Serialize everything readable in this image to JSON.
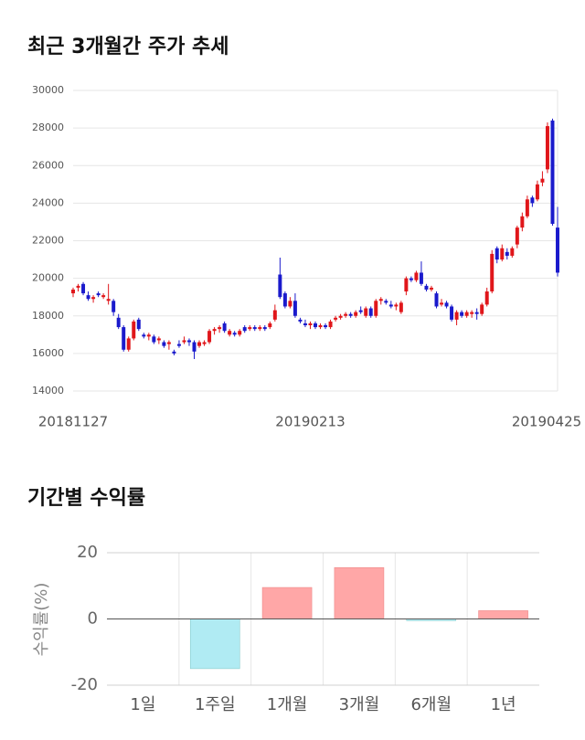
{
  "chart_data": [
    {
      "type": "candlestick",
      "title": "최근 3개월간 주가 추세",
      "categories": [
        "20181127",
        null,
        null,
        null,
        null,
        null,
        null,
        null,
        null,
        null,
        null,
        null,
        null,
        null,
        null,
        null,
        null,
        null,
        null,
        null,
        null,
        null,
        null,
        null,
        null,
        null,
        null,
        null,
        null,
        null,
        null,
        null,
        null,
        null,
        null,
        null,
        null,
        null,
        null,
        null,
        null,
        null,
        null,
        null,
        null,
        null,
        null,
        "20190213",
        null,
        null,
        null,
        null,
        null,
        null,
        null,
        null,
        null,
        null,
        null,
        null,
        null,
        null,
        null,
        null,
        null,
        null,
        null,
        null,
        null,
        null,
        null,
        null,
        null,
        null,
        null,
        null,
        null,
        null,
        null,
        null,
        null,
        null,
        null,
        null,
        null,
        null,
        null,
        null,
        null,
        null,
        null,
        null,
        null,
        null,
        null,
        null,
        "20190425"
      ],
      "open": [
        19200,
        19500,
        19700,
        19100,
        18900,
        19200,
        19000,
        18800,
        18800,
        17900,
        17400,
        16200,
        16800,
        17800,
        17000,
        16900,
        16900,
        16700,
        16600,
        16500,
        16100,
        16500,
        16600,
        16700,
        16600,
        16400,
        16500,
        16600,
        17200,
        17300,
        17600,
        17000,
        17100,
        17000,
        17400,
        17300,
        17400,
        17300,
        17400,
        17400,
        17800,
        20200,
        19200,
        18500,
        18800,
        17800,
        17600,
        17500,
        17600,
        17400,
        17500,
        17400,
        17800,
        17900,
        18000,
        18100,
        18000,
        18300,
        18000,
        18400,
        18000,
        18800,
        18800,
        18600,
        18500,
        18200,
        19300,
        20000,
        19900,
        20300,
        19600,
        19400,
        19200,
        18600,
        18700,
        18500,
        17800,
        18200,
        18000,
        18100,
        18200,
        18100,
        18600,
        19300,
        21600,
        21000,
        21400,
        21200,
        21800,
        22700,
        23300,
        24300,
        24200,
        25100,
        25800,
        28400,
        22700
      ],
      "high": [
        19500,
        19700,
        19800,
        19300,
        19100,
        19300,
        19200,
        19700,
        18900,
        18100,
        17500,
        16900,
        17800,
        17900,
        17100,
        17100,
        17000,
        16900,
        16700,
        16700,
        16200,
        16700,
        16900,
        16800,
        16700,
        16700,
        16700,
        17300,
        17400,
        17500,
        17700,
        17300,
        17200,
        17300,
        17500,
        17500,
        17500,
        17500,
        17500,
        17700,
        18600,
        21100,
        19300,
        19000,
        19200,
        17900,
        17800,
        17700,
        17700,
        17600,
        17600,
        17800,
        18000,
        18100,
        18200,
        18200,
        18300,
        18500,
        18500,
        18500,
        18900,
        19000,
        18900,
        18800,
        18700,
        18800,
        20100,
        20100,
        20400,
        20900,
        19700,
        19600,
        19300,
        18900,
        18800,
        18600,
        18300,
        18300,
        18300,
        18300,
        18400,
        18700,
        19500,
        21500,
        21700,
        21800,
        21600,
        21700,
        22800,
        23500,
        24400,
        24400,
        25200,
        25700,
        28300,
        28500,
        23800
      ],
      "low": [
        19000,
        19300,
        19100,
        18800,
        18700,
        19000,
        18900,
        18600,
        18000,
        17300,
        16100,
        16100,
        16700,
        17200,
        16800,
        16700,
        16500,
        16500,
        16300,
        16200,
        15900,
        16300,
        16500,
        16400,
        15700,
        16300,
        16400,
        16500,
        17000,
        17100,
        17100,
        16900,
        16900,
        16900,
        17100,
        17200,
        17200,
        17200,
        17200,
        17300,
        17700,
        18900,
        18400,
        18400,
        17900,
        17600,
        17400,
        17300,
        17300,
        17300,
        17300,
        17300,
        17700,
        17800,
        17900,
        17900,
        17900,
        18100,
        17900,
        17900,
        17900,
        18600,
        18600,
        18400,
        18300,
        18100,
        19100,
        19800,
        19800,
        19600,
        19300,
        19300,
        18400,
        18500,
        18400,
        17700,
        17500,
        17900,
        17900,
        17900,
        17800,
        18000,
        18500,
        19200,
        20800,
        20900,
        21000,
        21100,
        21600,
        22500,
        23200,
        23800,
        24100,
        24900,
        25600,
        22800,
        20100
      ],
      "close": [
        19400,
        19600,
        19200,
        18900,
        19000,
        19100,
        19100,
        18900,
        18200,
        17400,
        16200,
        16800,
        17700,
        17300,
        16900,
        17000,
        16600,
        16800,
        16400,
        16600,
        16000,
        16400,
        16700,
        16600,
        16100,
        16600,
        16600,
        17200,
        17300,
        17400,
        17200,
        17200,
        17000,
        17200,
        17200,
        17400,
        17300,
        17400,
        17300,
        17600,
        18300,
        19000,
        18500,
        18800,
        18000,
        17700,
        17500,
        17600,
        17400,
        17500,
        17400,
        17700,
        17900,
        18000,
        18100,
        18000,
        18200,
        18200,
        18400,
        18000,
        18800,
        18900,
        18700,
        18500,
        18600,
        18700,
        20000,
        19900,
        20300,
        19700,
        19400,
        19500,
        18500,
        18700,
        18500,
        17800,
        18200,
        18000,
        18200,
        18200,
        18100,
        18600,
        19300,
        21300,
        21000,
        21600,
        21200,
        21600,
        22700,
        23300,
        24200,
        24000,
        25000,
        25300,
        28100,
        22900,
        20300
      ],
      "up_color": "#e0161a",
      "down_color": "#1a1acc",
      "ylim": [
        14000,
        30000
      ],
      "yticks": [
        14000,
        16000,
        18000,
        20000,
        22000,
        24000,
        26000,
        28000,
        30000
      ],
      "grid": true
    },
    {
      "type": "bar",
      "title": "기간별 수익률",
      "ylabel": "수익률(%)",
      "categories": [
        "1일",
        "1주일",
        "1개월",
        "3개월",
        "6개월",
        "1년"
      ],
      "values": [
        0,
        -15,
        9.5,
        15.5,
        -0.5,
        2.5
      ],
      "positive_color": "#ffa7a7",
      "negative_color": "#b0ebf3",
      "ylim": [
        -20,
        20
      ],
      "yticks": [
        -20,
        0,
        20
      ],
      "grid": true
    }
  ]
}
